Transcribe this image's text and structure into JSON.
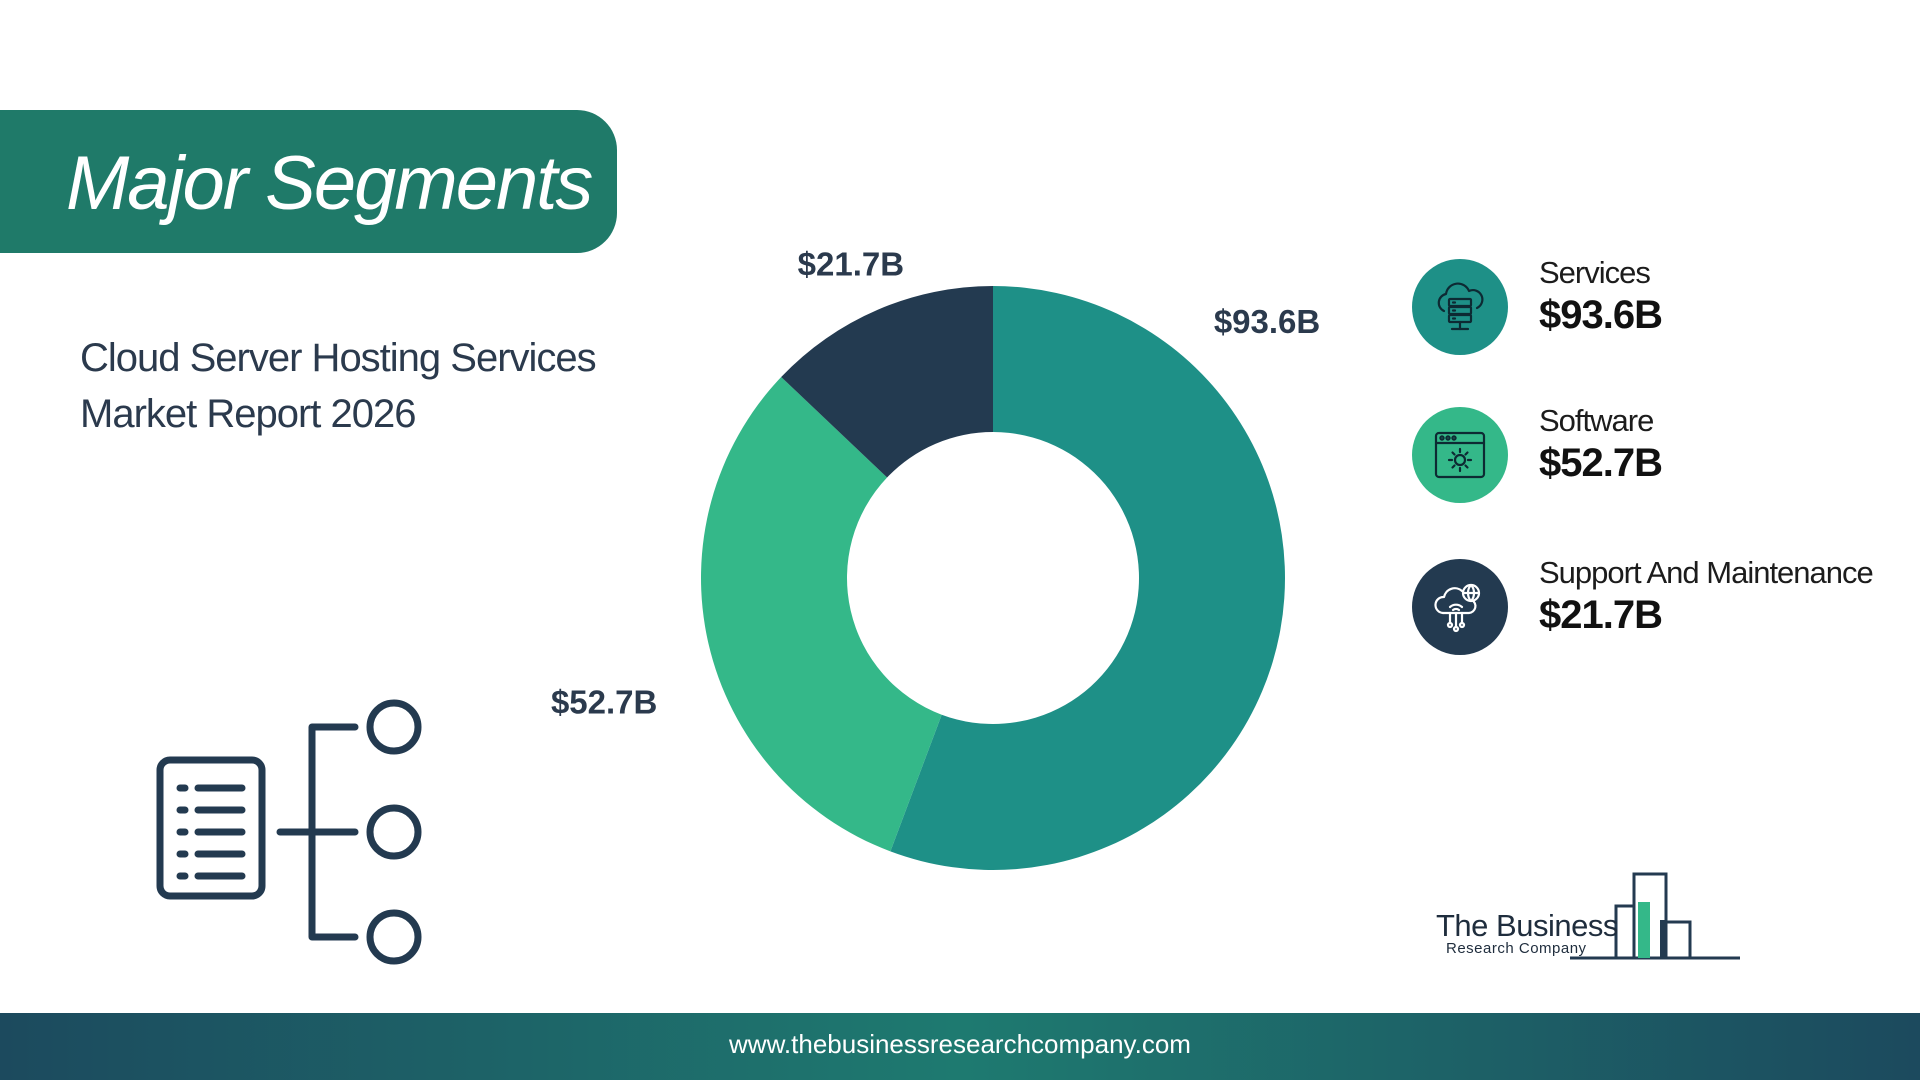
{
  "header": {
    "title": "Major Segments"
  },
  "subtitle": {
    "line1": "Cloud Server Hosting Services",
    "line2": "Market Report 2026"
  },
  "chart_data": {
    "type": "pie",
    "donut": true,
    "categories": [
      "Services",
      "Software",
      "Support And Maintenance"
    ],
    "values": [
      93.6,
      52.7,
      21.7
    ],
    "value_labels": [
      "$93.6B",
      "$52.7B",
      "$21.7B"
    ],
    "colors": [
      "#1e9087",
      "#34b889",
      "#233a50"
    ],
    "legend_position": "right"
  },
  "legend": {
    "items": [
      {
        "name": "Services",
        "value": "$93.6B",
        "icon": "cloud-server-icon",
        "color": "#1e9087"
      },
      {
        "name": "Software",
        "value": "$52.7B",
        "icon": "software-settings-icon",
        "color": "#34b889"
      },
      {
        "name": "Support And Maintenance",
        "value": "$21.7B",
        "icon": "cloud-network-icon",
        "color": "#233a50"
      }
    ]
  },
  "logo": {
    "line1": "The Business",
    "line2": "Research Company"
  },
  "footer": {
    "url": "www.thebusinessresearchcompany.com"
  }
}
